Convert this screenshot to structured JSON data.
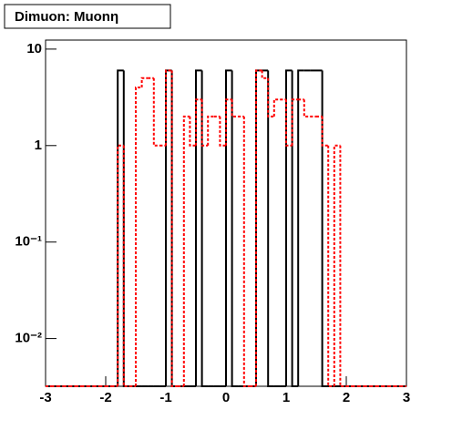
{
  "chart_data": {
    "type": "histogram",
    "title": "Dimuon: Muonη",
    "bins": [
      -3,
      -2.9,
      -2.8,
      -2.7,
      -2.6,
      -2.5,
      -2.4,
      -2.3,
      -2.2,
      -2.1,
      -2,
      -1.9,
      -1.8,
      -1.7,
      -1.6,
      -1.5,
      -1.4,
      -1.3,
      -1.2,
      -1.1,
      -1,
      -0.9,
      -0.8,
      -0.7,
      -0.6,
      -0.5,
      -0.4,
      -0.3,
      -0.2,
      -0.1,
      0,
      0.1,
      0.2,
      0.3,
      0.4,
      0.5,
      0.6,
      0.7,
      0.8,
      0.9,
      1,
      1.1,
      1.2,
      1.3,
      1.4,
      1.5,
      1.6,
      1.7,
      1.8,
      1.9,
      2,
      2.1,
      2.2,
      2.3,
      2.4,
      2.5,
      2.6,
      2.7,
      2.8,
      2.9,
      3
    ],
    "series": [
      {
        "color": "#000000",
        "dashed": false,
        "values": [
          0,
          0,
          0,
          0,
          0,
          0,
          0,
          0,
          0,
          0,
          0,
          0,
          6,
          0,
          0,
          0,
          0,
          0,
          0,
          0,
          6,
          0,
          0,
          0,
          0,
          6,
          0,
          0,
          0,
          0,
          6,
          0,
          0,
          0,
          0,
          6,
          6,
          0,
          0,
          0,
          6,
          0,
          6,
          6,
          6,
          6,
          0,
          0,
          0,
          0,
          0,
          0,
          0,
          0,
          0,
          0,
          0,
          0,
          0,
          0
        ]
      },
      {
        "color": "#ff0000",
        "dashed": true,
        "values": [
          0,
          0,
          0,
          0,
          0,
          0,
          0,
          0,
          0,
          0,
          0,
          0,
          1,
          0,
          0,
          4,
          5,
          5,
          1,
          1,
          6,
          0,
          0,
          2,
          1,
          3,
          1,
          2,
          2,
          1,
          3,
          2,
          2,
          0,
          0,
          6,
          5,
          2,
          3,
          3,
          1,
          3,
          3,
          2,
          2,
          2,
          1,
          0,
          1,
          0,
          0,
          0,
          0,
          0,
          0,
          0,
          0,
          0,
          0,
          0
        ]
      }
    ],
    "log_y": true,
    "xlim": [
      -3,
      3
    ],
    "ylim": [
      0.0032,
      12.4
    ],
    "xticks": [
      -3,
      -2,
      -1,
      0,
      1,
      2,
      3
    ],
    "yticks": [
      {
        "value": 0.01,
        "label": "10⁻²"
      },
      {
        "value": 0.1,
        "label": "10⁻¹"
      },
      1,
      10
    ]
  }
}
